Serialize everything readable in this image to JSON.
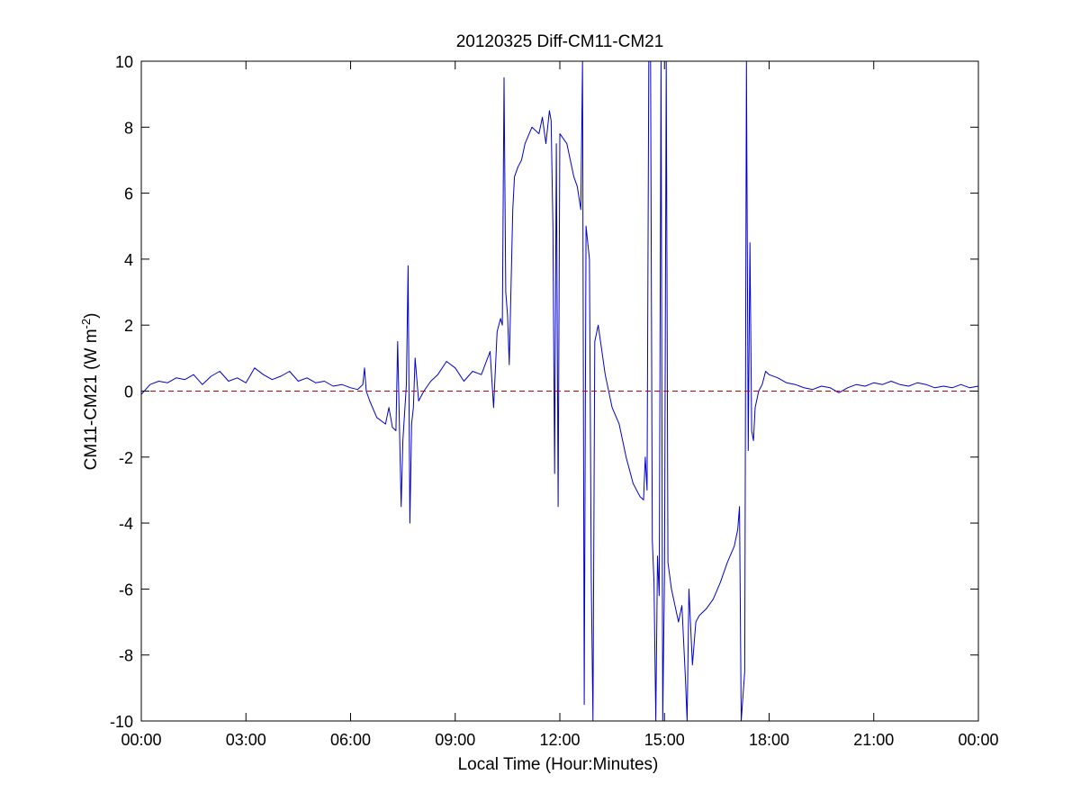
{
  "chart_data": {
    "type": "line",
    "title": "20120325 Diff-CM11-CM21",
    "xlabel": "Local Time (Hour:Minutes)",
    "ylabel": {
      "main": "CM11-CM21 (W m",
      "superscript": "-2",
      "suffix": ")"
    },
    "xlim": [
      0,
      24
    ],
    "ylim": [
      -10,
      10
    ],
    "x_ticks": [
      0,
      3,
      6,
      9,
      12,
      15,
      18,
      21,
      24
    ],
    "x_tick_labels": [
      "00:00",
      "03:00",
      "06:00",
      "09:00",
      "12:00",
      "15:00",
      "18:00",
      "21:00",
      "00:00"
    ],
    "y_ticks": [
      -10,
      -8,
      -6,
      -4,
      -2,
      0,
      2,
      4,
      6,
      8,
      10
    ],
    "y_tick_labels": [
      "-10",
      "-8",
      "-6",
      "-4",
      "-2",
      "0",
      "2",
      "4",
      "6",
      "8",
      "10"
    ],
    "grid": false,
    "reference_line": {
      "y": 0,
      "color": "#cc0000",
      "style": "dashed"
    },
    "series": [
      {
        "color": "#0000cc",
        "x_unit": "hours",
        "x": [
          0.0,
          0.25,
          0.5,
          0.75,
          1.0,
          1.25,
          1.5,
          1.75,
          2.0,
          2.25,
          2.5,
          2.75,
          3.0,
          3.25,
          3.5,
          3.75,
          4.0,
          4.25,
          4.5,
          4.75,
          5.0,
          5.25,
          5.5,
          5.75,
          6.0,
          6.2,
          6.35,
          6.4,
          6.45,
          6.55,
          6.75,
          7.0,
          7.1,
          7.2,
          7.3,
          7.35,
          7.45,
          7.5,
          7.6,
          7.65,
          7.7,
          7.75,
          7.8,
          7.85,
          7.95,
          8.1,
          8.3,
          8.5,
          8.75,
          9.0,
          9.25,
          9.5,
          9.75,
          10.0,
          10.1,
          10.2,
          10.3,
          10.35,
          10.4,
          10.45,
          10.5,
          10.55,
          10.65,
          10.7,
          10.8,
          10.9,
          11.0,
          11.2,
          11.4,
          11.5,
          11.6,
          11.7,
          11.75,
          11.8,
          11.85,
          11.9,
          11.95,
          12.0,
          12.2,
          12.4,
          12.5,
          12.6,
          12.65,
          12.7,
          12.75,
          12.85,
          12.9,
          12.95,
          13.0,
          13.1,
          13.3,
          13.5,
          13.7,
          13.9,
          14.1,
          14.3,
          14.4,
          14.45,
          14.5,
          14.55,
          14.6,
          14.65,
          14.7,
          14.75,
          14.8,
          14.85,
          14.9,
          14.95,
          15.0,
          15.05,
          15.1,
          15.2,
          15.3,
          15.4,
          15.5,
          15.6,
          15.65,
          15.7,
          15.8,
          15.9,
          16.0,
          16.2,
          16.4,
          16.6,
          16.8,
          17.0,
          17.1,
          17.15,
          17.2,
          17.3,
          17.35,
          17.4,
          17.45,
          17.5,
          17.55,
          17.6,
          17.7,
          17.8,
          17.9,
          18.0,
          18.25,
          18.5,
          18.75,
          19.0,
          19.25,
          19.5,
          19.75,
          20.0,
          20.25,
          20.5,
          20.75,
          21.0,
          21.25,
          21.5,
          21.75,
          22.0,
          22.25,
          22.5,
          22.75,
          23.0,
          23.25,
          23.5,
          23.75,
          24.0
        ],
        "y": [
          -0.1,
          0.2,
          0.3,
          0.25,
          0.4,
          0.35,
          0.5,
          0.2,
          0.45,
          0.6,
          0.3,
          0.4,
          0.25,
          0.7,
          0.5,
          0.35,
          0.45,
          0.6,
          0.3,
          0.4,
          0.25,
          0.3,
          0.15,
          0.2,
          0.1,
          0.05,
          0.2,
          0.7,
          0.0,
          -0.3,
          -0.8,
          -1.0,
          -0.5,
          -1.1,
          -1.2,
          1.5,
          -3.5,
          -1.5,
          0.2,
          3.8,
          -4.0,
          -1.0,
          -0.5,
          1.0,
          -0.3,
          0.0,
          0.3,
          0.5,
          0.9,
          0.7,
          0.3,
          0.6,
          0.5,
          1.2,
          -0.5,
          1.8,
          2.2,
          2.0,
          9.5,
          3.0,
          2.3,
          0.8,
          5.5,
          6.5,
          6.8,
          7.0,
          7.5,
          8.0,
          7.8,
          8.3,
          7.5,
          8.5,
          8.2,
          5.0,
          -2.5,
          7.5,
          -3.5,
          7.8,
          7.5,
          6.5,
          6.2,
          5.5,
          10.0,
          -9.5,
          5.0,
          4.0,
          -5.7,
          -10.0,
          1.5,
          2.0,
          0.5,
          -0.5,
          -1.0,
          -2.0,
          -2.8,
          -3.2,
          -3.3,
          -2.0,
          -3.0,
          10.0,
          10.0,
          -4.5,
          -5.8,
          -10.0,
          -5.0,
          -6.2,
          10.0,
          -10.0,
          -5.5,
          10.0,
          -5.2,
          -6.0,
          -6.5,
          -7.0,
          -6.5,
          -8.7,
          -10.0,
          -6.0,
          -8.3,
          -7.0,
          -6.8,
          -6.6,
          -6.3,
          -5.8,
          -5.2,
          -4.7,
          -4.2,
          -3.5,
          -10.0,
          -8.5,
          10.0,
          -1.8,
          4.5,
          -1.2,
          -1.5,
          -0.5,
          0.0,
          0.2,
          0.6,
          0.5,
          0.4,
          0.25,
          0.2,
          0.1,
          0.05,
          0.15,
          0.1,
          -0.05,
          0.1,
          0.2,
          0.15,
          0.25,
          0.2,
          0.3,
          0.2,
          0.15,
          0.25,
          0.2,
          0.1,
          0.15,
          0.1,
          0.2,
          0.1,
          0.15
        ]
      }
    ]
  }
}
